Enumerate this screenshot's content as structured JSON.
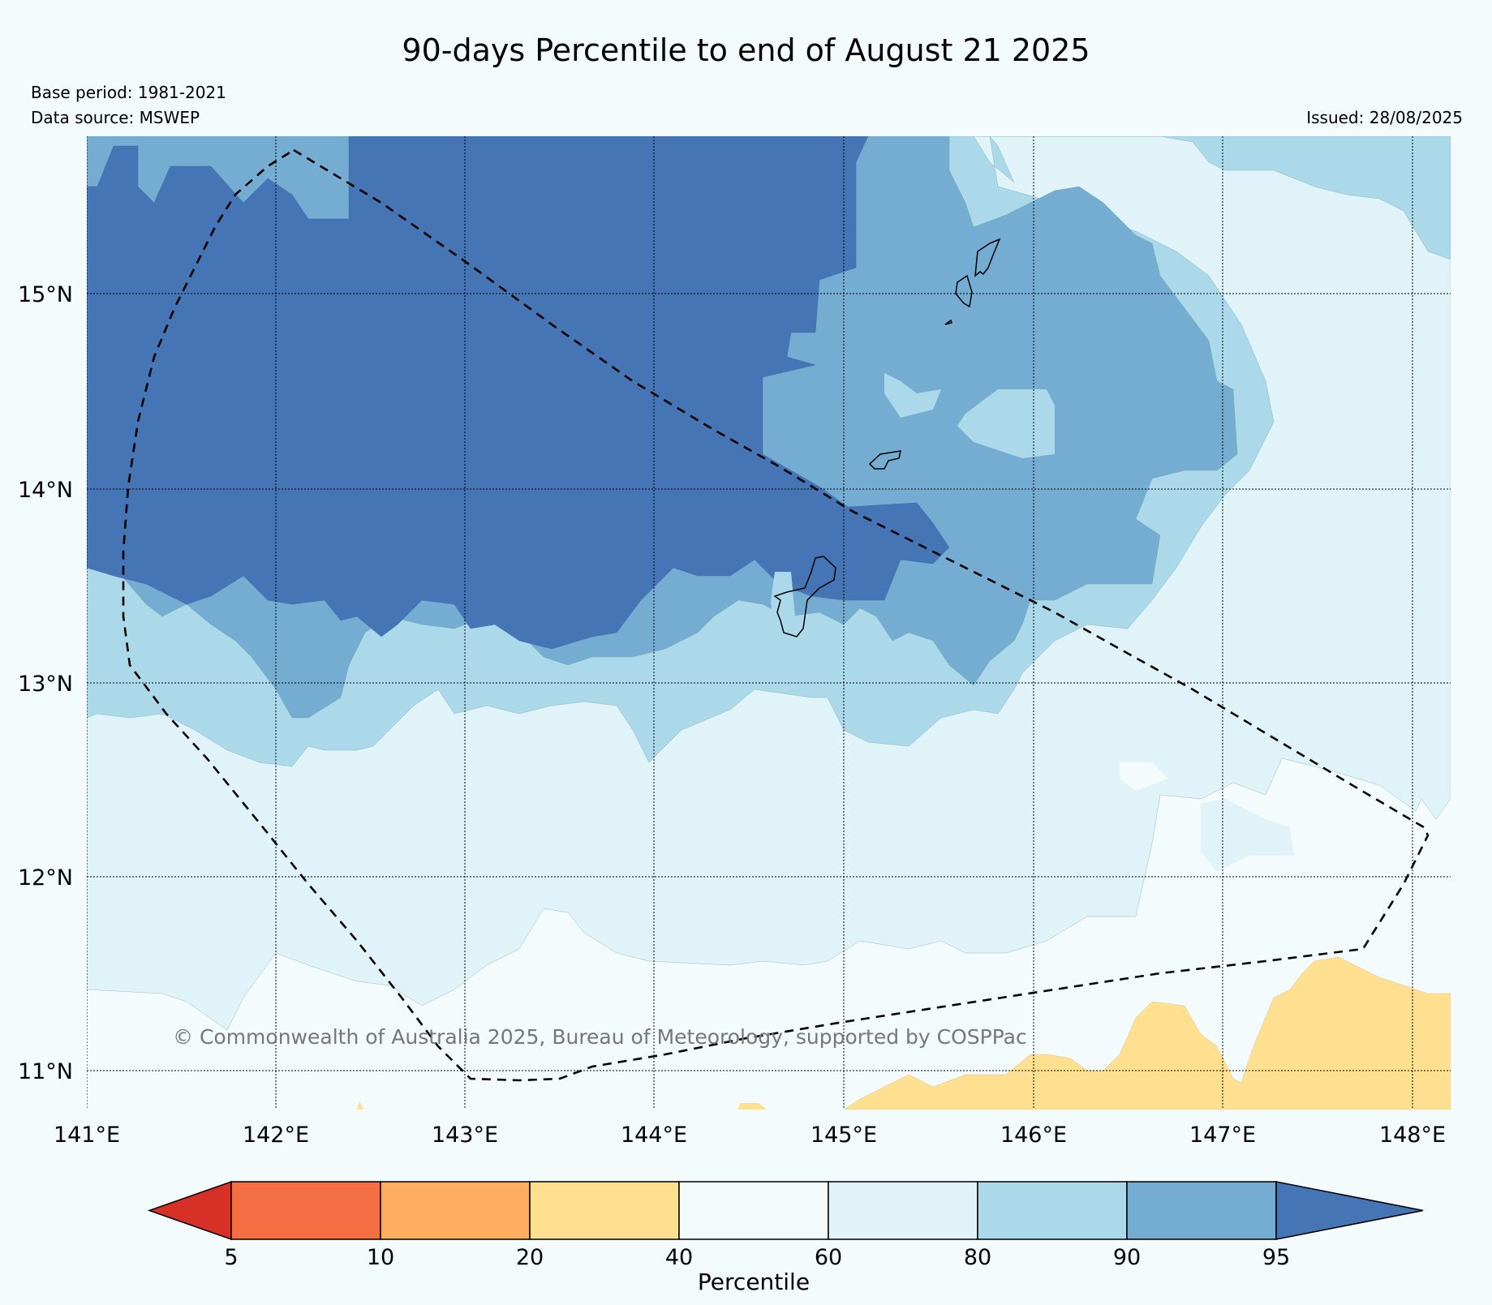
{
  "title": "90-days Percentile to end of August 21 2025",
  "base_period": "Base period: 1981-2021",
  "data_source": "Data source: MSWEP",
  "issued": "Issued: 28/08/2025",
  "copyright": "© Commonwealth of Australia 2025, Bureau of Meteorology, supported by COSPPac",
  "lon_ticks": [
    "141°E",
    "142°E",
    "143°E",
    "144°E",
    "145°E",
    "146°E",
    "147°E",
    "148°E"
  ],
  "lat_ticks": [
    "15°N",
    "14°N",
    "13°N",
    "12°N",
    "11°N"
  ],
  "colorbar": {
    "label": "Percentile",
    "ticks": [
      "5",
      "10",
      "20",
      "40",
      "60",
      "80",
      "90",
      "95"
    ],
    "colors": [
      "#d73027",
      "#f46d43",
      "#fdae61",
      "#fee090",
      "#f3fbfd",
      "#e0f3f8",
      "#abd9e9",
      "#74add1",
      "#4575b4"
    ]
  },
  "colors": {
    "p95": "#4575b4",
    "p90": "#74add1",
    "p80": "#abd9e9",
    "p60": "#e0f3f8",
    "p40": "#f3fbfd",
    "p20": "#fee090",
    "background": "#f3fbfd"
  }
}
